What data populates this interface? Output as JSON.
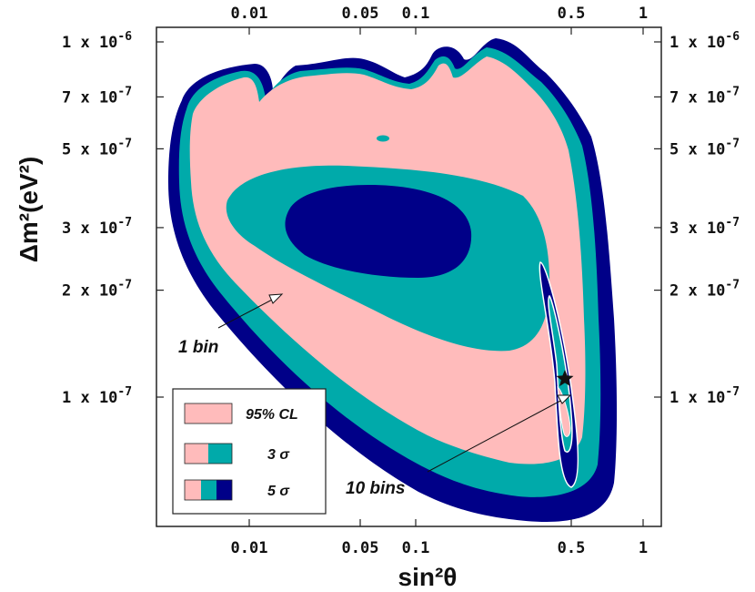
{
  "chart_data": {
    "type": "contour",
    "xlabel": "sin²θ",
    "ylabel": "Δm²(eV²)",
    "x_scale": "reciprocal-tangent",
    "y_scale": "log",
    "x_ticks": [
      {
        "value": 0.01,
        "label": "0.01"
      },
      {
        "value": 0.05,
        "label": "0.05"
      },
      {
        "value": 0.1,
        "label": "0.1"
      },
      {
        "value": 0.5,
        "label": "0.5"
      },
      {
        "value": 1,
        "label": "1"
      }
    ],
    "y_ticks": [
      {
        "value": 1e-06,
        "mant": "1 x 10",
        "exp": "-6"
      },
      {
        "value": 7e-07,
        "mant": "7 x 10",
        "exp": "-7"
      },
      {
        "value": 5e-07,
        "mant": "5 x 10",
        "exp": "-7"
      },
      {
        "value": 3e-07,
        "mant": "3 x 10",
        "exp": "-7"
      },
      {
        "value": 2e-07,
        "mant": "2 x 10",
        "exp": "-7"
      },
      {
        "value": 1e-07,
        "mant": "1 x 10",
        "exp": "-7"
      }
    ],
    "ylim": [
      6.2e-08,
      1.1e-06
    ],
    "best_fit": {
      "sin2theta": 0.42,
      "dm2": 1.12e-07
    },
    "regions": [
      {
        "name": "5 σ",
        "bins": "1 bin",
        "color": "#000088"
      },
      {
        "name": "3 σ",
        "bins": "1 bin",
        "color": "#00aaaa"
      },
      {
        "name": "95% CL",
        "bins": "1 bin",
        "color": "#ffbbbb"
      },
      {
        "name": "3 σ (inner)",
        "bins": "1 bin",
        "color": "#00aaaa"
      },
      {
        "name": "95% CL (inner)",
        "bins": "1 bin",
        "color": "#000088"
      }
    ],
    "annotations": [
      "1 bin",
      "10 bins"
    ],
    "legend": {
      "position": "bottom-left",
      "entries": [
        {
          "label": "95% CL",
          "colors": [
            "#ffbbbb"
          ]
        },
        {
          "label": "3 σ",
          "colors": [
            "#ffbbbb",
            "#00aaaa"
          ]
        },
        {
          "label": "5 σ",
          "colors": [
            "#ffbbbb",
            "#00aaaa",
            "#000088"
          ]
        }
      ]
    }
  }
}
